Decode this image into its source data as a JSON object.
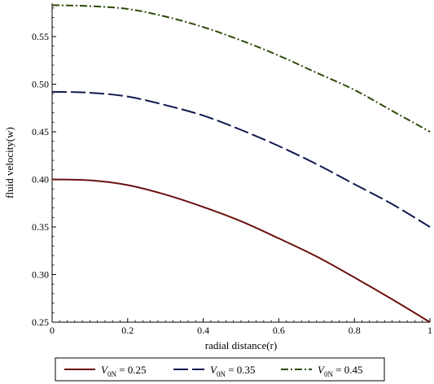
{
  "chart_data": {
    "type": "line",
    "title": "",
    "xlabel": "radial distance(r)",
    "ylabel": "fluid velocity(w)",
    "xlim": [
      0,
      1
    ],
    "ylim": [
      0.25,
      0.585
    ],
    "xticks": [
      "0",
      "0.2",
      "0.4",
      "0.6",
      "0.8",
      "1"
    ],
    "yticks": [
      "0.25",
      "0.30",
      "0.35",
      "0.40",
      "0.45",
      "0.50",
      "0.55"
    ],
    "grid": false,
    "legend_position": "bottom",
    "x": [
      0,
      0.1,
      0.2,
      0.3,
      0.4,
      0.5,
      0.6,
      0.7,
      0.8,
      0.9,
      1.0
    ],
    "series": [
      {
        "name": "V0N = 0.25",
        "legend_symbol": "V",
        "legend_subscript": "0N",
        "legend_value": " = 0.25",
        "color": "#6b1010",
        "dash": "solid",
        "values": [
          0.4,
          0.399,
          0.394,
          0.384,
          0.371,
          0.356,
          0.338,
          0.319,
          0.297,
          0.274,
          0.25
        ]
      },
      {
        "name": "V0N = 0.35",
        "legend_symbol": "V",
        "legend_subscript": "0N",
        "legend_value": " = 0.35",
        "color": "#111a4f",
        "dash": "longdash",
        "values": [
          0.492,
          0.491,
          0.487,
          0.478,
          0.467,
          0.452,
          0.435,
          0.416,
          0.395,
          0.374,
          0.35
        ]
      },
      {
        "name": "V0N = 0.45",
        "legend_symbol": "V",
        "legend_subscript": "0N",
        "legend_value": " = 0.45",
        "color": "#2e4a0a",
        "dash": "dashdot",
        "values": [
          0.583,
          0.582,
          0.579,
          0.571,
          0.56,
          0.546,
          0.53,
          0.512,
          0.494,
          0.472,
          0.45
        ]
      }
    ]
  }
}
